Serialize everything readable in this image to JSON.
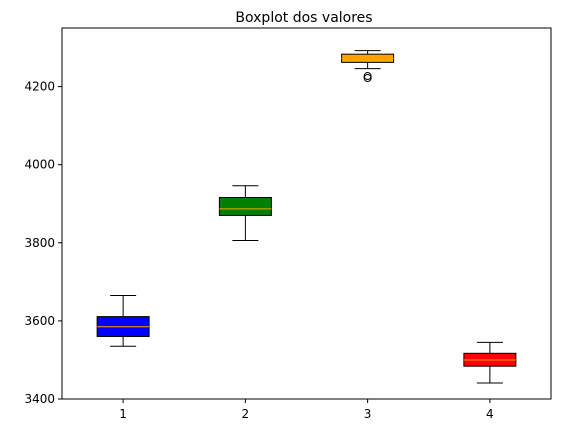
{
  "chart_data": {
    "type": "boxplot",
    "title": "Boxplot dos valores",
    "xlabel": "",
    "ylabel": "",
    "categories": [
      "1",
      "2",
      "3",
      "4"
    ],
    "ylim": [
      3400,
      4350
    ],
    "yticks": [
      3400,
      3600,
      3800,
      4000,
      4200
    ],
    "ytick_labels": [
      "3400",
      "3600",
      "3800",
      "4000",
      "4200"
    ],
    "grid": false,
    "boxes": [
      {
        "category": "1",
        "color": "#0000ff",
        "whisker_low": 3535,
        "q1": 3560,
        "median": 3585,
        "q3": 3611,
        "whisker_high": 3665,
        "outliers": []
      },
      {
        "category": "2",
        "color": "#008000",
        "whisker_low": 3806,
        "q1": 3870,
        "median": 3887,
        "q3": 3916,
        "whisker_high": 3946,
        "outliers": []
      },
      {
        "category": "3",
        "color": "#ffa500",
        "whisker_low": 4246,
        "q1": 4262,
        "median": 4272,
        "q3": 4283,
        "whisker_high": 4292,
        "outliers": [
          4222,
          4227
        ]
      },
      {
        "category": "4",
        "color": "#ff0000",
        "whisker_low": 3441,
        "q1": 3484,
        "median": 3500,
        "q3": 3517,
        "whisker_high": 3545,
        "outliers": []
      }
    ],
    "median_color": "#ffa500"
  }
}
